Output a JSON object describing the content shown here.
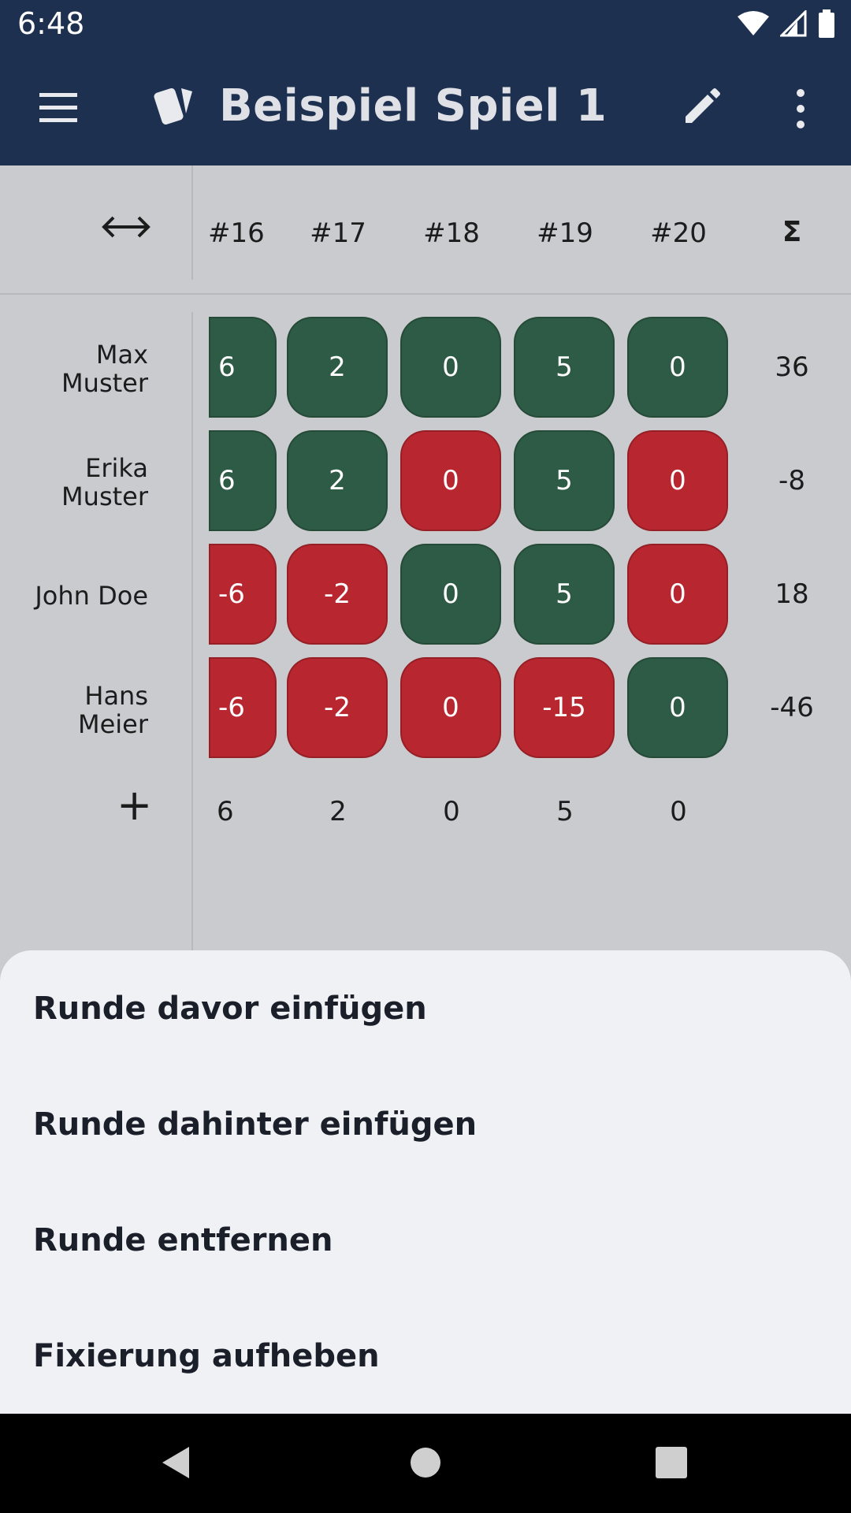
{
  "status": {
    "time": "6:48"
  },
  "appbar": {
    "title": "Beispiel Spiel 1"
  },
  "table": {
    "rounds": [
      "#16",
      "#17",
      "#18",
      "#19",
      "#20"
    ],
    "sum_symbol": "Σ",
    "players": [
      {
        "name_line1": "Max",
        "name_line2": "Muster",
        "scores": [
          "6",
          "2",
          "0",
          "5",
          "0"
        ],
        "states": [
          "pos",
          "pos",
          "pos",
          "pos",
          "pos"
        ],
        "total": "36"
      },
      {
        "name_line1": "Erika",
        "name_line2": "Muster",
        "scores": [
          "6",
          "2",
          "0",
          "5",
          "0"
        ],
        "states": [
          "pos",
          "pos",
          "neg",
          "pos",
          "neg"
        ],
        "total": "-8"
      },
      {
        "name_line1": "John Doe",
        "name_line2": "",
        "scores": [
          "-6",
          "-2",
          "0",
          "5",
          "0"
        ],
        "states": [
          "neg",
          "neg",
          "pos",
          "pos",
          "neg"
        ],
        "total": "18"
      },
      {
        "name_line1": "Hans",
        "name_line2": "Meier",
        "scores": [
          "-6",
          "-2",
          "0",
          "-15",
          "0"
        ],
        "states": [
          "neg",
          "neg",
          "neg",
          "neg",
          "pos"
        ],
        "total": "-46"
      }
    ],
    "footer_values": [
      "6",
      "2",
      "0",
      "5",
      "0"
    ]
  },
  "sheet": {
    "items": [
      "Runde davor einfügen",
      "Runde dahinter einfügen",
      "Runde entfernen",
      "Fixierung aufheben"
    ]
  },
  "colors": {
    "appbar": "#1e3050",
    "positive": "#2e5b45",
    "negative": "#b8272f",
    "sheet": "#f0f1f4"
  }
}
